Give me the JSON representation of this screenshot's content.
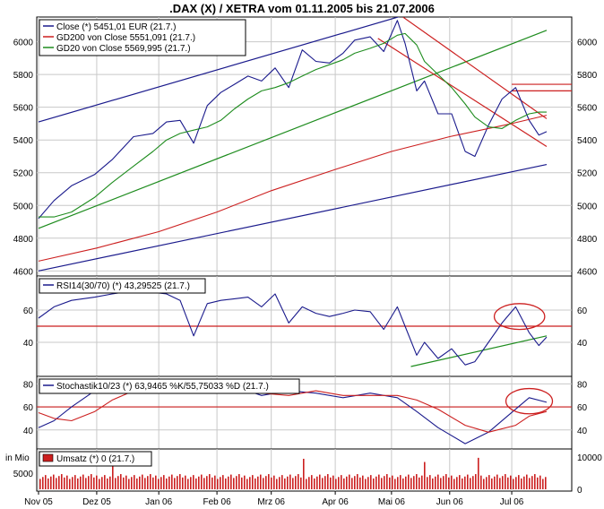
{
  "chart_data": [
    {
      "type": "line",
      "panel": "price",
      "title": ".DAX (X) / XETRA vom 01.11.2005 bis 21.07.2006",
      "ylim": [
        4580,
        6140
      ],
      "yticks": [
        4600,
        4800,
        5000,
        5200,
        5400,
        5600,
        5800,
        6000
      ],
      "grid": true,
      "legend": "top-left",
      "x_range": [
        "01.11.2005",
        "21.07.2006"
      ],
      "series": [
        {
          "name": "Close (*) 5451,01 EUR (21.7.)",
          "color": "#1a1a8c",
          "style": "price",
          "x": [
            "01.11.2005",
            "09.11.2005",
            "18.11.2005",
            "30.11.2005",
            "09.12.2005",
            "20.12.2005",
            "30.12.2005",
            "06.01.2006",
            "13.01.2006",
            "20.01.2006",
            "27.01.2006",
            "03.02.2006",
            "10.02.2006",
            "17.02.2006",
            "24.02.2006",
            "03.03.2006",
            "10.03.2006",
            "17.03.2006",
            "24.03.2006",
            "31.03.2006",
            "07.04.2006",
            "13.04.2006",
            "21.04.2006",
            "28.04.2006",
            "05.05.2006",
            "09.05.2006",
            "15.05.2006",
            "19.05.2006",
            "26.05.2006",
            "02.06.2006",
            "09.06.2006",
            "14.06.2006",
            "21.06.2006",
            "28.06.2006",
            "05.07.2006",
            "12.07.2006",
            "17.07.2006",
            "21.07.2006"
          ],
          "values": [
            4920,
            5030,
            5120,
            5190,
            5280,
            5420,
            5440,
            5510,
            5520,
            5380,
            5610,
            5690,
            5740,
            5790,
            5760,
            5840,
            5720,
            5950,
            5880,
            5870,
            5930,
            6010,
            6030,
            5940,
            6130,
            5990,
            5700,
            5760,
            5560,
            5560,
            5330,
            5300,
            5490,
            5650,
            5720,
            5520,
            5430,
            5451
          ]
        },
        {
          "name": "GD200 von Close 5551,091 (21.7.)",
          "color": "#cc1f1f",
          "style": "ma200",
          "x": [
            "01.11.2005",
            "01.12.2005",
            "02.01.2006",
            "01.02.2006",
            "01.03.2006",
            "03.04.2006",
            "02.05.2006",
            "01.06.2006",
            "03.07.2006",
            "21.07.2006"
          ],
          "values": [
            4660,
            4740,
            4840,
            4960,
            5090,
            5220,
            5330,
            5420,
            5500,
            5551
          ]
        },
        {
          "name": "GD20 von Close 5569,995 (21.7.)",
          "color": "#1e8c1e",
          "style": "ma20",
          "x": [
            "01.11.2005",
            "09.11.2005",
            "18.11.2005",
            "30.11.2005",
            "09.12.2005",
            "20.12.2005",
            "30.12.2005",
            "06.01.2006",
            "13.01.2006",
            "20.01.2006",
            "27.01.2006",
            "03.02.2006",
            "10.02.2006",
            "17.02.2006",
            "24.02.2006",
            "03.03.2006",
            "10.03.2006",
            "17.03.2006",
            "24.03.2006",
            "31.03.2006",
            "07.04.2006",
            "13.04.2006",
            "21.04.2006",
            "28.04.2006",
            "05.05.2006",
            "09.05.2006",
            "15.05.2006",
            "19.05.2006",
            "26.05.2006",
            "02.06.2006",
            "09.06.2006",
            "14.06.2006",
            "21.06.2006",
            "28.06.2006",
            "05.07.2006",
            "12.07.2006",
            "17.07.2006",
            "21.07.2006"
          ],
          "values": [
            4930,
            4930,
            4960,
            5050,
            5140,
            5240,
            5330,
            5400,
            5440,
            5460,
            5480,
            5520,
            5590,
            5650,
            5700,
            5720,
            5750,
            5790,
            5830,
            5860,
            5890,
            5930,
            5960,
            5990,
            6040,
            6050,
            5980,
            5880,
            5800,
            5720,
            5620,
            5540,
            5480,
            5470,
            5520,
            5560,
            5570,
            5570
          ]
        }
      ],
      "trendlines": [
        {
          "color": "#1a1a8c",
          "x": [
            "01.11.2005",
            "08.05.2006"
          ],
          "values": [
            5510,
            6160
          ]
        },
        {
          "color": "#1a1a8c",
          "x": [
            "01.11.2005",
            "21.07.2006"
          ],
          "values": [
            4600,
            5250
          ]
        },
        {
          "color": "#1e8c1e",
          "x": [
            "01.11.2005",
            "21.07.2006"
          ],
          "values": [
            4860,
            6070
          ]
        },
        {
          "color": "#cc1f1f",
          "x": [
            "08.05.2006",
            "21.07.2006"
          ],
          "values": [
            6150,
            5530
          ]
        },
        {
          "color": "#cc1f1f",
          "x": [
            "25.04.2006",
            "21.07.2006"
          ],
          "values": [
            6020,
            5360
          ]
        }
      ],
      "hlines": [
        {
          "color": "#cc1f1f",
          "value": 5740,
          "from": "03.07.2006"
        },
        {
          "color": "#cc1f1f",
          "value": 5700,
          "from": "03.07.2006"
        }
      ]
    },
    {
      "type": "line",
      "panel": "rsi",
      "ylim": [
        20,
        80
      ],
      "yticks": [
        40,
        60
      ],
      "legend": "top-left",
      "series": [
        {
          "name": "RSI14(30/70) (*) 43,29525 (21.7.)",
          "color": "#1a1a8c",
          "x": [
            "01.11.2005",
            "09.11.2005",
            "18.11.2005",
            "30.11.2005",
            "09.12.2005",
            "20.12.2005",
            "30.12.2005",
            "06.01.2006",
            "13.01.2006",
            "20.01.2006",
            "27.01.2006",
            "03.02.2006",
            "10.02.2006",
            "17.02.2006",
            "24.02.2006",
            "03.03.2006",
            "10.03.2006",
            "17.03.2006",
            "24.03.2006",
            "31.03.2006",
            "07.04.2006",
            "13.04.2006",
            "21.04.2006",
            "28.04.2006",
            "05.05.2006",
            "09.05.2006",
            "15.05.2006",
            "19.05.2006",
            "26.05.2006",
            "02.06.2006",
            "09.06.2006",
            "14.06.2006",
            "21.06.2006",
            "28.06.2006",
            "05.07.2006",
            "12.07.2006",
            "17.07.2006",
            "21.07.2006"
          ],
          "values": [
            55,
            62,
            66,
            68,
            70,
            72,
            71,
            70,
            66,
            44,
            64,
            66,
            67,
            68,
            62,
            70,
            52,
            62,
            58,
            56,
            58,
            60,
            59,
            48,
            62,
            50,
            32,
            40,
            30,
            36,
            26,
            28,
            40,
            52,
            62,
            46,
            38,
            43.3
          ]
        }
      ],
      "hlines": [
        {
          "color": "#cc1f1f",
          "value": 50
        }
      ],
      "trendlines": [
        {
          "color": "#1e8c1e",
          "x": [
            "12.05.2006",
            "21.07.2006"
          ],
          "values": [
            25,
            44
          ]
        }
      ],
      "ellipses": [
        {
          "color": "#cc1f1f",
          "center": [
            "07.07.2006",
            56
          ],
          "rx_days": 13,
          "ry": 8
        }
      ]
    },
    {
      "type": "line",
      "panel": "stochastic",
      "ylim": [
        25,
        85
      ],
      "yticks": [
        40,
        60,
        80
      ],
      "legend": "top-left",
      "series": [
        {
          "name": "Stochastik10/23 (*) 63,9465 %K/55,75033 %D (21.7.)",
          "color": "#1a1a8c",
          "x": [
            "01.11.2005",
            "09.11.2005",
            "18.11.2005",
            "30.11.2005",
            "09.12.2005",
            "20.12.2005",
            "30.12.2005",
            "13.01.2006",
            "27.01.2006",
            "10.02.2006",
            "24.02.2006",
            "10.03.2006",
            "24.03.2006",
            "07.04.2006",
            "21.04.2006",
            "05.05.2006",
            "15.05.2006",
            "26.05.2006",
            "09.06.2006",
            "21.06.2006",
            "05.07.2006",
            "12.07.2006",
            "21.07.2006"
          ],
          "values": [
            42,
            48,
            60,
            74,
            82,
            84,
            80,
            82,
            76,
            78,
            70,
            74,
            72,
            68,
            72,
            68,
            56,
            42,
            28,
            38,
            58,
            68,
            64
          ]
        },
        {
          "name": "%D",
          "color": "#cc1f1f",
          "x": [
            "01.11.2005",
            "09.11.2005",
            "18.11.2005",
            "30.11.2005",
            "09.12.2005",
            "20.12.2005",
            "30.12.2005",
            "13.01.2006",
            "27.01.2006",
            "10.02.2006",
            "24.02.2006",
            "10.03.2006",
            "24.03.2006",
            "07.04.2006",
            "21.04.2006",
            "05.05.2006",
            "15.05.2006",
            "26.05.2006",
            "09.06.2006",
            "21.06.2006",
            "05.07.2006",
            "12.07.2006",
            "21.07.2006"
          ],
          "values": [
            55,
            50,
            48,
            56,
            66,
            74,
            78,
            78,
            78,
            76,
            72,
            70,
            74,
            70,
            70,
            70,
            66,
            58,
            44,
            38,
            44,
            52,
            56
          ]
        }
      ],
      "hlines": [
        {
          "color": "#cc1f1f",
          "value": 60
        }
      ],
      "ellipses": [
        {
          "color": "#cc1f1f",
          "center": [
            "12.07.2006",
            65
          ],
          "rx_days": 12,
          "ry": 11
        }
      ]
    },
    {
      "type": "bar",
      "panel": "volume",
      "unit_label": "in Mio",
      "ylim": [
        0,
        12000
      ],
      "yticks_left": [
        5000
      ],
      "yticks_right": [
        0,
        10000
      ],
      "legend": "top-left",
      "series": [
        {
          "name": "Umsatz (*) 0 (21.7.)",
          "color": "#cc1f1f"
        }
      ],
      "typical_value": 4300,
      "spikes": [
        {
          "x": "09.12.2005",
          "value": 7800
        },
        {
          "x": "17.03.2006",
          "value": 9500
        },
        {
          "x": "19.05.2006",
          "value": 8500
        },
        {
          "x": "16.06.2006",
          "value": 9800
        }
      ]
    }
  ],
  "x_axis": {
    "start": "01.11.2005",
    "end": "21.07.2006",
    "ticks": [
      {
        "date": "01.11.2005",
        "label": "Nov 05"
      },
      {
        "date": "01.12.2005",
        "label": "Dez 05"
      },
      {
        "date": "02.01.2006",
        "label": "Jan 06"
      },
      {
        "date": "01.02.2006",
        "label": "Feb 06"
      },
      {
        "date": "01.03.2006",
        "label": "Mrz 06"
      },
      {
        "date": "03.04.2006",
        "label": "Apr 06"
      },
      {
        "date": "02.05.2006",
        "label": "Mai 06"
      },
      {
        "date": "01.06.2006",
        "label": "Jun 06"
      },
      {
        "date": "03.07.2006",
        "label": "Jul 06"
      }
    ]
  },
  "colors": {
    "blue": "#1a1a8c",
    "red": "#cc1f1f",
    "green": "#1e8c1e",
    "grid": "#c8c8c8",
    "frame": "#000000"
  }
}
